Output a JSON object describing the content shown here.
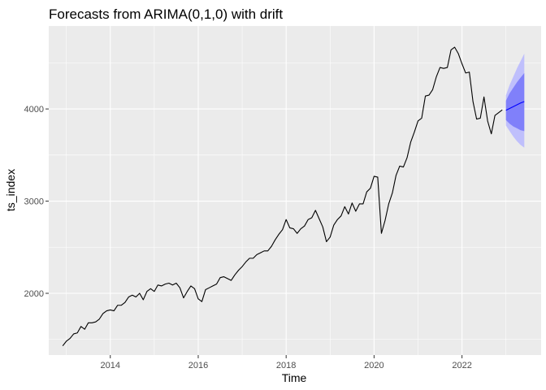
{
  "chart_data": {
    "type": "line",
    "title": "Forecasts from ARIMA(0,1,0) with drift",
    "xlabel": "Time",
    "ylabel": "ts_index",
    "xlim": [
      2012.6,
      2023.8
    ],
    "ylim": [
      1330,
      4900
    ],
    "xticks": [
      2014,
      2016,
      2018,
      2020,
      2022
    ],
    "xtick_labels": [
      "2014",
      "2016",
      "2018",
      "2020",
      "2022"
    ],
    "yticks": [
      2000,
      3000,
      4000
    ],
    "ytick_labels": [
      "2000",
      "3000",
      "4000"
    ],
    "grid": true,
    "legend": "none",
    "colors": {
      "panel": "#ebebeb",
      "grid_major": "#ffffff",
      "series": "#000000",
      "band_95": "#bfbffc",
      "band_80": "#8080fa",
      "forecast_line": "#0000ff"
    },
    "series": [
      {
        "x": [
          2012.917,
          2013.0,
          2013.083,
          2013.167,
          2013.25,
          2013.333,
          2013.417,
          2013.5,
          2013.583,
          2013.667,
          2013.75,
          2013.833,
          2013.917,
          2014.0,
          2014.083,
          2014.167,
          2014.25,
          2014.333,
          2014.417,
          2014.5,
          2014.583,
          2014.667,
          2014.75,
          2014.833,
          2014.917,
          2015.0,
          2015.083,
          2015.167,
          2015.25,
          2015.333,
          2015.417,
          2015.5,
          2015.583,
          2015.667,
          2015.75,
          2015.833,
          2015.917,
          2016.0,
          2016.083,
          2016.167,
          2016.25,
          2016.333,
          2016.417,
          2016.5,
          2016.583,
          2016.667,
          2016.75,
          2016.833,
          2016.917,
          2017.0,
          2017.083,
          2017.167,
          2017.25,
          2017.333,
          2017.417,
          2017.5,
          2017.583,
          2017.667,
          2017.75,
          2017.833,
          2017.917,
          2018.0,
          2018.083,
          2018.167,
          2018.25,
          2018.333,
          2018.417,
          2018.5,
          2018.583,
          2018.667,
          2018.75,
          2018.833,
          2018.917,
          2019.0,
          2019.083,
          2019.167,
          2019.25,
          2019.333,
          2019.417,
          2019.5,
          2019.583,
          2019.667,
          2019.75,
          2019.833,
          2019.917,
          2020.0,
          2020.083,
          2020.167,
          2020.25,
          2020.333,
          2020.417,
          2020.5,
          2020.583,
          2020.667,
          2020.75,
          2020.833,
          2020.917,
          2021.0,
          2021.083,
          2021.167,
          2021.25,
          2021.333,
          2021.417,
          2021.5,
          2021.583,
          2021.667,
          2021.75,
          2021.833,
          2021.917,
          2022.0,
          2022.083,
          2022.167,
          2022.25,
          2022.333,
          2022.417,
          2022.5,
          2022.583,
          2022.667,
          2022.75,
          2022.833,
          2022.917
        ],
        "values": [
          1430,
          1480,
          1510,
          1560,
          1570,
          1640,
          1610,
          1680,
          1680,
          1690,
          1720,
          1780,
          1810,
          1820,
          1810,
          1870,
          1870,
          1900,
          1960,
          1980,
          1960,
          2000,
          1930,
          2020,
          2050,
          2020,
          2090,
          2080,
          2100,
          2110,
          2090,
          2110,
          2060,
          1950,
          2020,
          2080,
          2050,
          1940,
          1910,
          2040,
          2060,
          2080,
          2100,
          2170,
          2180,
          2160,
          2140,
          2200,
          2250,
          2290,
          2340,
          2380,
          2380,
          2420,
          2440,
          2460,
          2460,
          2510,
          2580,
          2640,
          2690,
          2800,
          2710,
          2700,
          2650,
          2700,
          2730,
          2800,
          2820,
          2900,
          2810,
          2720,
          2560,
          2610,
          2740,
          2800,
          2840,
          2940,
          2860,
          2980,
          2890,
          2970,
          2970,
          3100,
          3140,
          3270,
          3260,
          2650,
          2790,
          2970,
          3090,
          3280,
          3380,
          3370,
          3470,
          3640,
          3750,
          3870,
          3900,
          4140,
          4150,
          4210,
          4350,
          4450,
          4440,
          4450,
          4640,
          4670,
          4600,
          4490,
          4390,
          4400,
          4080,
          3890,
          3900,
          4130,
          3870,
          3730,
          3930,
          3960,
          3990
        ],
        "colors": "#000000"
      },
      {
        "x": [
          2023.0,
          2023.083,
          2023.167,
          2023.25,
          2023.333,
          2023.417
        ],
        "values": [
          3985,
          4005,
          4025,
          4045,
          4065,
          4080
        ],
        "colors": "#0000ff"
      }
    ],
    "intervals": [
      {
        "level": 95,
        "x": [
          2023.0,
          2023.083,
          2023.167,
          2023.25,
          2023.333,
          2023.417
        ],
        "lower": [
          3820,
          3760,
          3700,
          3650,
          3610,
          3580
        ],
        "upper": [
          4150,
          4260,
          4350,
          4440,
          4520,
          4600
        ]
      },
      {
        "level": 80,
        "x": [
          2023.0,
          2023.083,
          2023.167,
          2023.25,
          2023.333,
          2023.417
        ],
        "lower": [
          3880,
          3840,
          3810,
          3790,
          3770,
          3760
        ],
        "upper": [
          4090,
          4170,
          4230,
          4290,
          4340,
          4390
        ]
      }
    ]
  }
}
